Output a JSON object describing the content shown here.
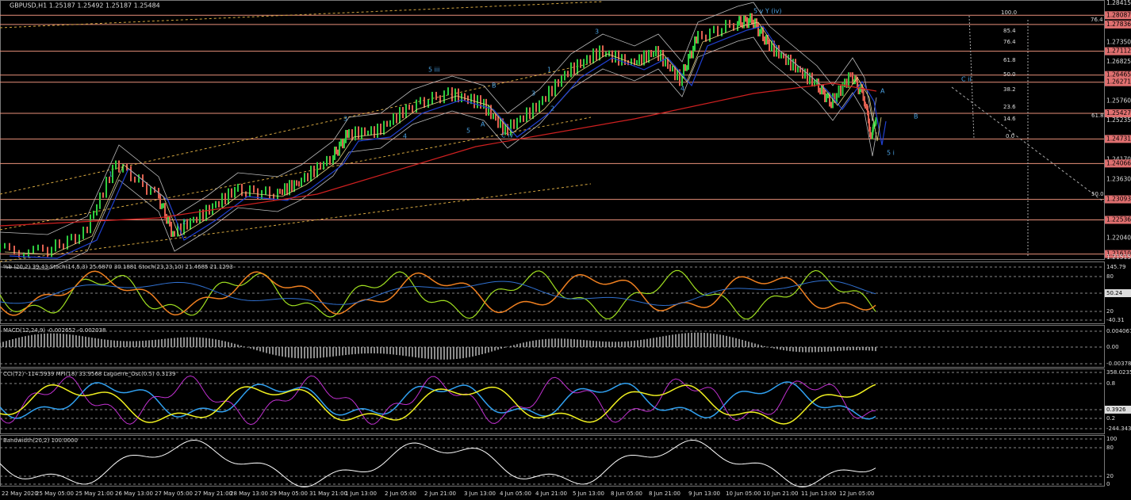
{
  "header": {
    "title": "GBPUSD,H1  1.25187 1.25492 1.25187 1.25484"
  },
  "price_axis": {
    "labels": [
      "1.28415",
      "1.28087",
      "1.27836",
      "1.27350",
      "1.27112",
      "1.26825",
      "1.26465",
      "1.26271",
      "1.25760",
      "1.25427",
      "1.25235",
      "1.24731",
      "1.24170",
      "1.24066",
      "1.23630",
      "1.23093",
      "1.22536",
      "1.22040",
      "1.21610",
      "1.21515"
    ],
    "highlighted": [
      "1.28087",
      "1.27836",
      "1.27112",
      "1.26465",
      "1.26271",
      "1.25427",
      "1.24731",
      "1.24066",
      "1.23093",
      "1.22536",
      "1.21610"
    ]
  },
  "fib_levels": [
    "100.0",
    "76.4",
    "85.4",
    "76.4",
    "61.8",
    "50.0",
    "38.2",
    "23.6",
    "14.6",
    "61.8",
    "0.0",
    "50.0"
  ],
  "wave_labels": [
    "5 iii",
    "5 v  Y (iv)",
    "C ii",
    "B",
    "A",
    "5  i",
    "C iv",
    "1",
    "2",
    "3",
    "4",
    "5",
    "3",
    "1",
    "2",
    "3",
    "4",
    "B",
    "A"
  ],
  "panels": [
    {
      "header": "%b (20,2) 39.43  Stoch(14,5,3) 25.6870 30.1881  Stoch(23,23,10) 21.4685 21.1293",
      "axis": [
        "145.79",
        "80",
        "50.24",
        "20",
        "-40.31"
      ]
    },
    {
      "header": "MACD(12,24,9) -0.002652 -0.002038",
      "axis": [
        "0.004067",
        "0.00",
        "-0.003784"
      ]
    },
    {
      "header": "CCI(72) -114.5939  MFI(18) 33.9568  Laguerre_Osc(0.5) 0.3139",
      "axis": [
        "358.0235",
        "0.8",
        "0.3926",
        "0.2",
        "-244.3431"
      ]
    },
    {
      "header": "Bandwidth(20,2) 100.0000",
      "axis": [
        "100",
        "80",
        "20",
        "0"
      ]
    }
  ],
  "time_axis": [
    "22 May 2020",
    "25 May 05:00",
    "25 May 21:00",
    "26 May 13:00",
    "27 May 05:00",
    "27 May 21:00",
    "28 May 13:00",
    "29 May 05:00",
    "31 May 21:00",
    "1 Jun 13:00",
    "2 Jun 05:00",
    "2 Jun 21:00",
    "3 Jun 13:00",
    "4 Jun 05:00",
    "4 Jun 21:00",
    "5 Jun 13:00",
    "8 Jun 05:00",
    "8 Jun 21:00",
    "9 Jun 13:00",
    "10 Jun 05:00",
    "10 Jun 21:00",
    "11 Jun 13:00",
    "12 Jun 05:00"
  ]
}
